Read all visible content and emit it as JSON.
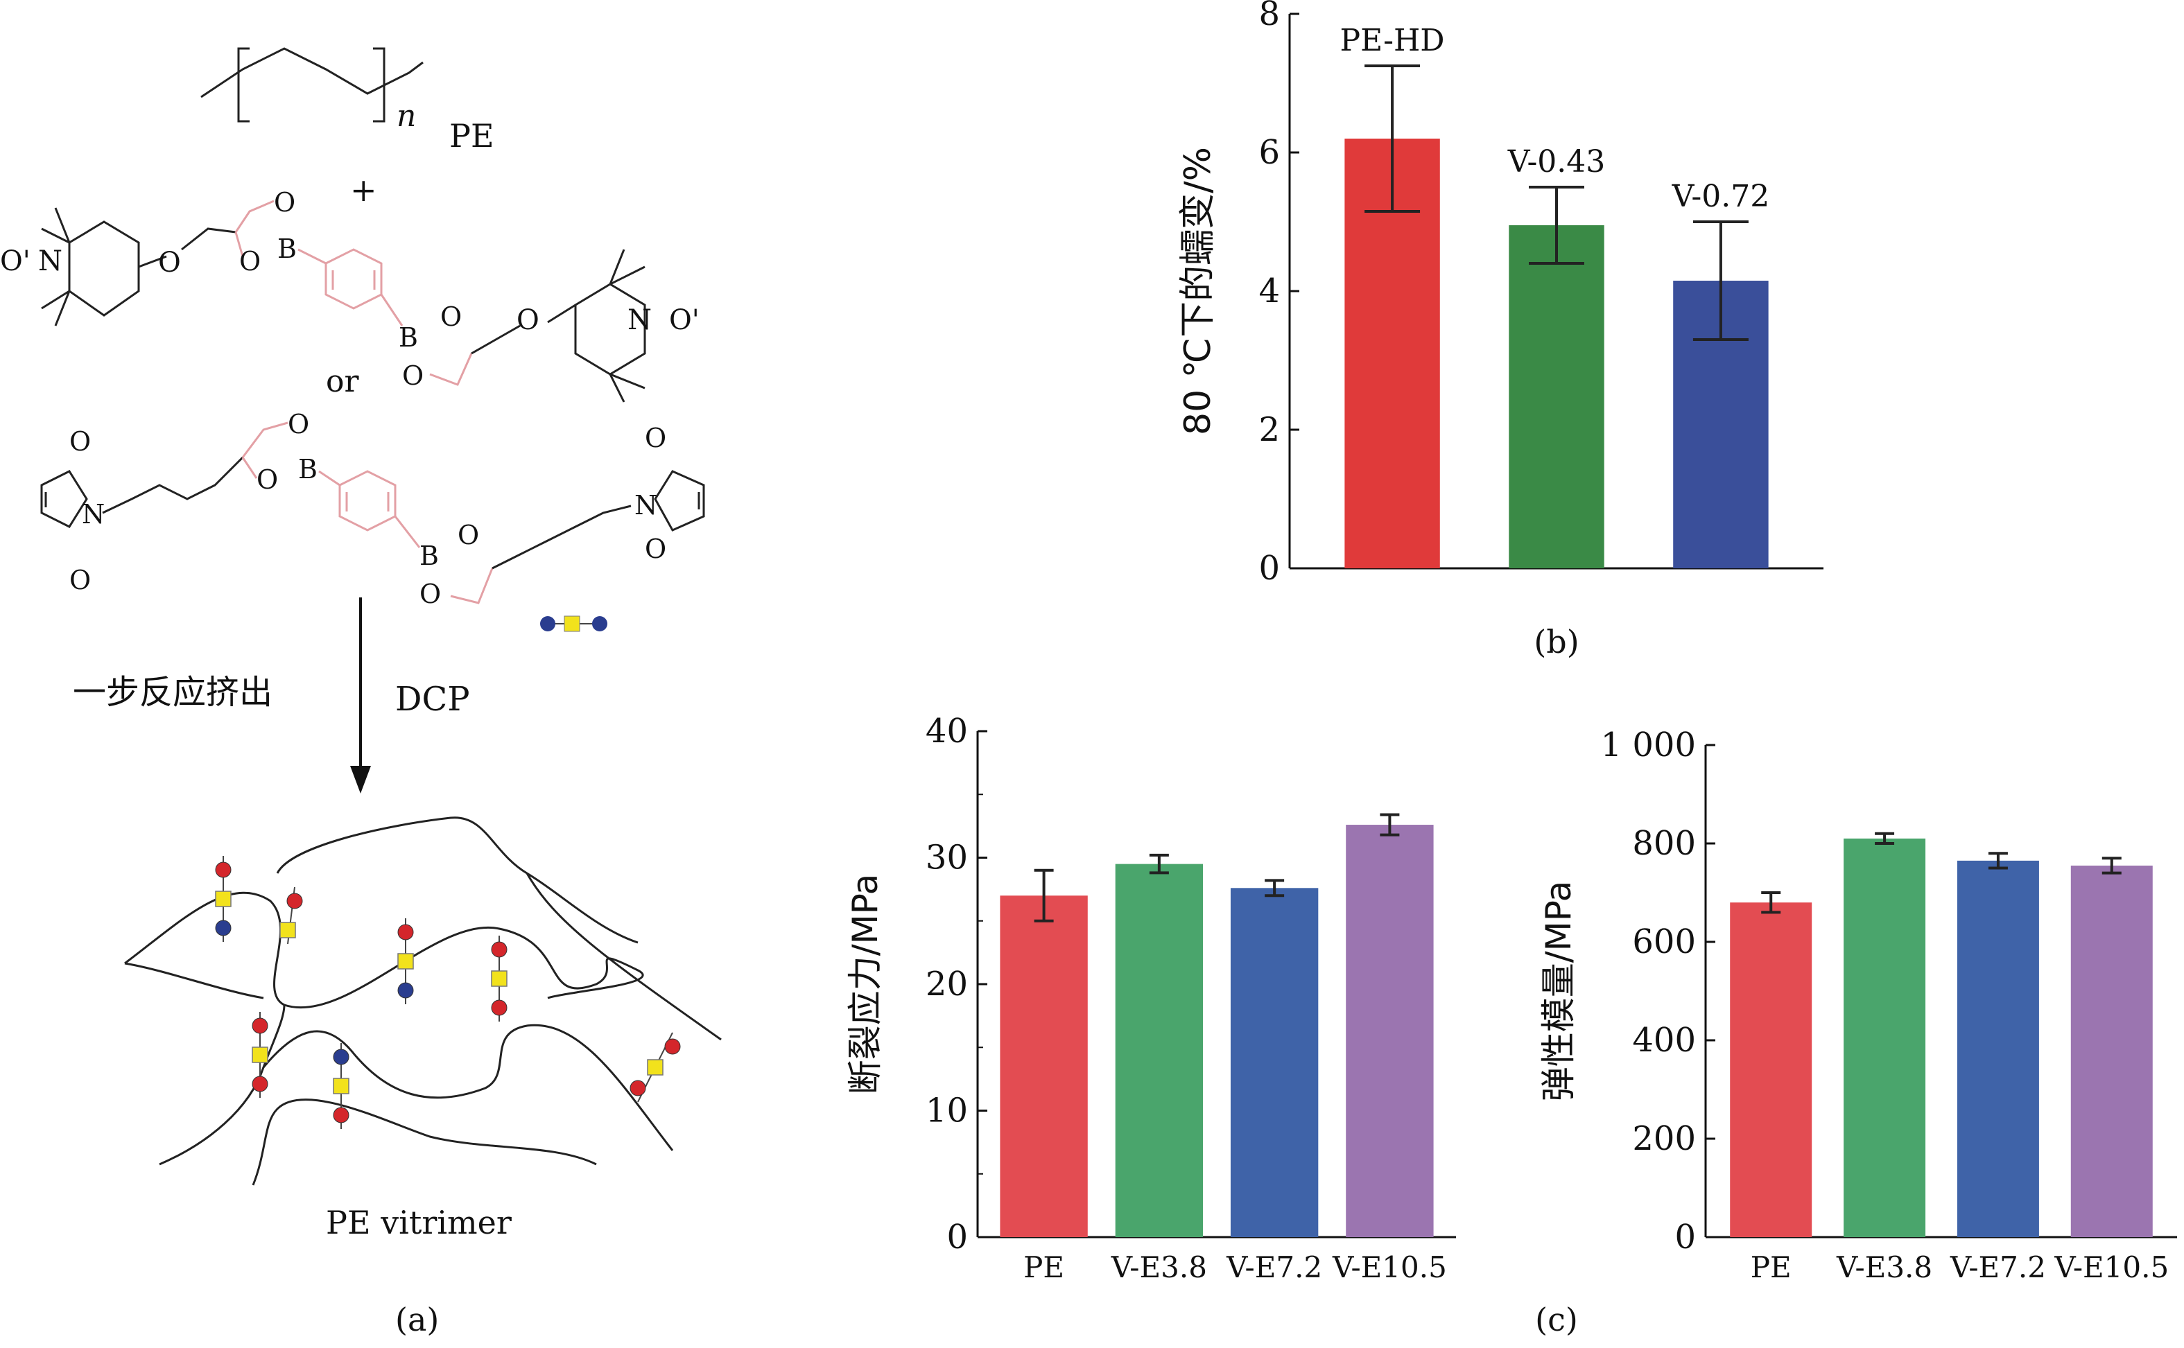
{
  "panel_a": {
    "pe_label": "PE",
    "pe_sub": "n",
    "plus": "+",
    "or": "or",
    "atoms": {
      "O_radical": "O'",
      "N": "N",
      "O": "O",
      "B": "B"
    },
    "process_label": "一步反应挤出",
    "reagent": "DCP",
    "product_label": "PE vitrimer",
    "caption": "(a)"
  },
  "colors": {
    "red": "#e03a3a",
    "green": "#3a8a46",
    "blue": "#3a4f9a",
    "purple": "#9b75b0",
    "c_red": "#e34c52",
    "c_green": "#4aa56c",
    "c_blue": "#3f63a8",
    "bead_red": "#d4262b",
    "bead_yellow": "#f2e21c",
    "bead_blue": "#2a3d8f",
    "pink": "#e3a0a5"
  },
  "chart_data": [
    {
      "id": "b",
      "type": "bar",
      "categories": [
        "PE-HD",
        "V-0.43",
        "V-0.72"
      ],
      "values": [
        6.2,
        4.95,
        4.15
      ],
      "errors": [
        1.05,
        0.55,
        0.85
      ],
      "ylabel": "80 ℃下的蠕变/%",
      "ylim": [
        0,
        8
      ],
      "yticks": [
        "0",
        "2",
        "4",
        "6",
        "8"
      ],
      "caption": "(b)"
    },
    {
      "id": "c1",
      "type": "bar",
      "categories": [
        "PE",
        "V-E3.8",
        "V-E7.2",
        "V-E10.5"
      ],
      "values": [
        27,
        29.5,
        27.6,
        32.6
      ],
      "errors": [
        2.0,
        0.7,
        0.6,
        0.8
      ],
      "ylabel": "断裂应力/MPa",
      "ylim": [
        0,
        40
      ],
      "yticks": [
        "0",
        "10",
        "20",
        "30",
        "40"
      ]
    },
    {
      "id": "c2",
      "type": "bar",
      "categories": [
        "PE",
        "V-E3.8",
        "V-E7.2",
        "V-E10.5"
      ],
      "values": [
        680,
        810,
        765,
        755
      ],
      "errors": [
        20,
        10,
        15,
        15
      ],
      "ylabel": "弹性模量/MPa",
      "ylim": [
        0,
        1000
      ],
      "yticks": [
        "0",
        "200",
        "400",
        "600",
        "800",
        "1 000"
      ],
      "caption": "(c)"
    }
  ]
}
